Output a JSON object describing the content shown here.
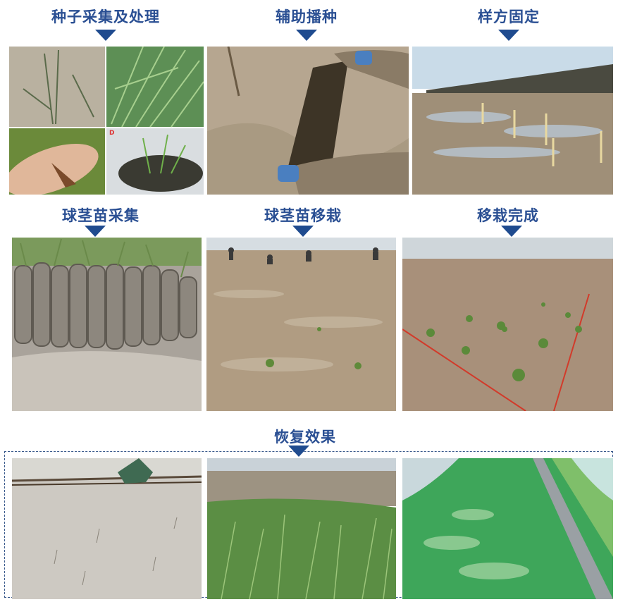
{
  "steps": [
    {
      "id": "seed",
      "label": "种子采集及处理"
    },
    {
      "id": "assisted-sowing",
      "label": "辅助播种"
    },
    {
      "id": "quadrat-fixing",
      "label": "样方固定"
    },
    {
      "id": "bulb-collection",
      "label": "球茎苗采集"
    },
    {
      "id": "bulb-transplant",
      "label": "球茎苗移栽"
    },
    {
      "id": "transplant-complete",
      "label": "移栽完成"
    },
    {
      "id": "restoration-effect",
      "label": "恢复效果"
    }
  ],
  "photo_badge": "D",
  "colors": {
    "heading": "#2a4f93",
    "arrow": "#1f4b8f",
    "mud": "#a89a88",
    "grass": "#4f8a3a",
    "sky": "#c8d8e4"
  }
}
